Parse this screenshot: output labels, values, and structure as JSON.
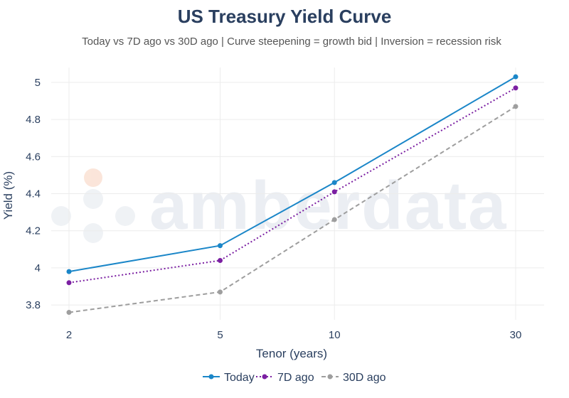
{
  "chart_data": {
    "type": "line",
    "title": "US Treasury Yield Curve",
    "subtitle": "Today vs 7D ago vs 30D ago | Curve steepening = growth bid | Inversion = recession risk",
    "xlabel": "Tenor (years)",
    "ylabel": "Yield (%)",
    "x_scale": "log",
    "x": [
      2,
      5,
      10,
      30
    ],
    "x_tick_labels": [
      "2",
      "5",
      "10",
      "30"
    ],
    "ylim": [
      3.72,
      5.08
    ],
    "y_ticks": [
      3.8,
      4,
      4.2,
      4.4,
      4.6,
      4.8,
      5
    ],
    "y_tick_labels": [
      "3.8",
      "4",
      "4.2",
      "4.4",
      "4.6",
      "4.8",
      "5"
    ],
    "grid": true,
    "legend_position": "bottom",
    "series": [
      {
        "name": "Today",
        "values": [
          3.98,
          4.12,
          4.46,
          5.03
        ],
        "color": "#1a86c8",
        "dash": "solid"
      },
      {
        "name": "7D ago",
        "values": [
          3.92,
          4.04,
          4.41,
          4.97
        ],
        "color": "#7b1fa2",
        "dash": "dot"
      },
      {
        "name": "30D ago",
        "values": [
          3.76,
          3.87,
          4.26,
          4.87
        ],
        "color": "#9e9e9e",
        "dash": "dash"
      }
    ]
  },
  "watermark": {
    "text": "amberdata"
  }
}
